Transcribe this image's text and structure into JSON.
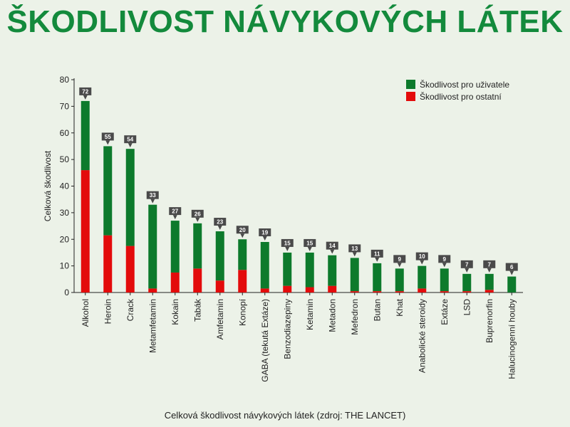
{
  "title": "ŠKODLIVOST NÁVYKOVÝCH LÁTEK",
  "caption": "Celková škodlivost návykových látek (zdroj: THE LANCET)",
  "colors": {
    "title": "#138a3c",
    "users": "#0d7a2c",
    "others": "#e30b0b",
    "callout": "#4a4a4a"
  },
  "chart_data": {
    "type": "bar",
    "stacked": true,
    "ylabel": "Celková škodlivost",
    "xlabel": "",
    "ylim": [
      0,
      80
    ],
    "yticks": [
      0,
      10,
      20,
      30,
      40,
      50,
      60,
      70,
      80
    ],
    "legend_position": "top-right",
    "grid": false,
    "categories": [
      "Alkohol",
      "Heroin",
      "Crack",
      "Metamfetamin",
      "Kokain",
      "Tabák",
      "Amfetamin",
      "Konopí",
      "GABA (tekutá Extáze)",
      "Benzodiazepiny",
      "Ketamin",
      "Metadon",
      "Mefedron",
      "Butan",
      "Khat",
      "Anabolické steroidy",
      "Extáze",
      "LSD",
      "Buprenorfin",
      "Halucinogenní houby"
    ],
    "totals": [
      72,
      55,
      54,
      33,
      27,
      26,
      23,
      20,
      19,
      15,
      15,
      14,
      13,
      11,
      9,
      10,
      9,
      7,
      7,
      6
    ],
    "series": [
      {
        "name": "Škodlivost pro ostatní",
        "values": [
          46,
          21.5,
          17.5,
          1.5,
          7.5,
          9,
          4.5,
          8.5,
          1.5,
          2.5,
          2,
          2.5,
          0.5,
          0.5,
          0.5,
          1.5,
          0.5,
          0.5,
          1,
          0
        ]
      },
      {
        "name": "Škodlivost pro uživatele",
        "values": [
          26,
          33.5,
          36.5,
          31.5,
          19.5,
          17,
          18.5,
          11.5,
          17.5,
          12.5,
          13,
          11.5,
          12.5,
          10.5,
          8.5,
          8.5,
          8.5,
          6.5,
          6,
          6
        ]
      }
    ]
  }
}
